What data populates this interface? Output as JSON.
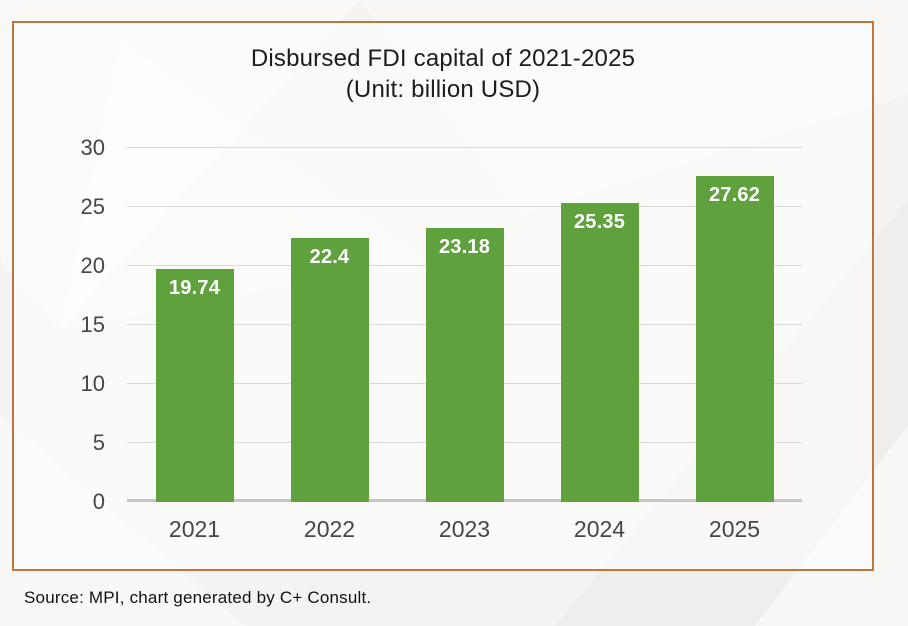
{
  "chart_data": {
    "type": "bar",
    "title": "Disbursed FDI capital of 2021-2025",
    "subtitle": "(Unit: billion USD)",
    "categories": [
      "2021",
      "2022",
      "2023",
      "2024",
      "2025"
    ],
    "values": [
      19.74,
      22.4,
      23.18,
      25.35,
      27.62
    ],
    "value_labels": [
      "19.74",
      "22.4",
      "23.18",
      "25.35",
      "27.62"
    ],
    "xlabel": "",
    "ylabel": "",
    "ylim": [
      0,
      30
    ],
    "yticks": [
      0,
      5,
      10,
      15,
      20,
      25,
      30
    ],
    "grid": true,
    "legend_position": "none",
    "bar_color": "#5fa23d",
    "value_label_color": "#ffffff"
  },
  "footer": {
    "source": "Source: MPI, chart generated by C+ Consult."
  },
  "colors": {
    "frame_border": "#c0763b",
    "gridline": "#d9d9d9",
    "axis_line": "#c6c6c6",
    "tick_text": "#464646",
    "title_text": "#1c1c1c",
    "source_text": "#121212",
    "page_background": "#f4f3f1"
  }
}
